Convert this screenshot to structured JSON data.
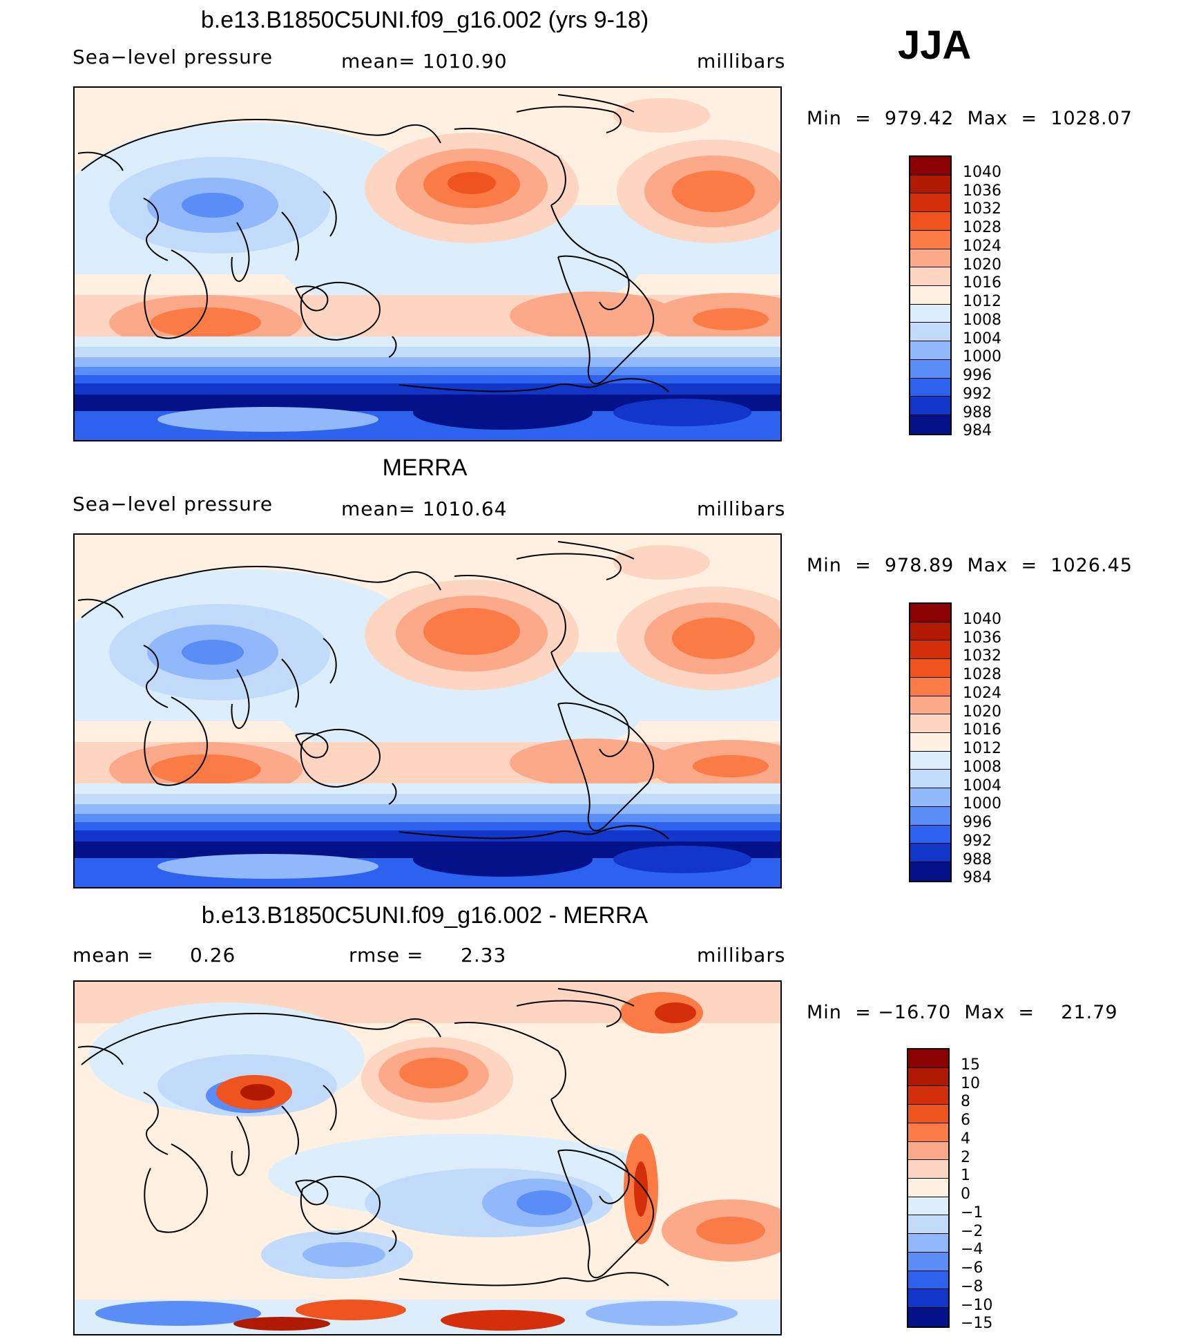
{
  "season": "JJA",
  "chart_data": [
    {
      "type": "heatmap",
      "title": "b.e13.B1850C5UNI.f09_g16.002 (yrs 9-18)",
      "variable": "Sea−level pressure",
      "stat_text": "mean=  1010.90",
      "units": "millibars",
      "min_max": "Min  =  979.42  Max  =  1028.07",
      "levels": [
        "1040",
        "1036",
        "1032",
        "1028",
        "1024",
        "1020",
        "1016",
        "1012",
        "1008",
        "1004",
        "1000",
        "996",
        "992",
        "988",
        "984"
      ],
      "level_colors": [
        "#8b0000",
        "#b01a00",
        "#d42f0b",
        "#f0541e",
        "#fb7b46",
        "#fca98a",
        "#fdd5c1",
        "#fff0e1",
        "#dceefc",
        "#c3dbfb",
        "#91b8fa",
        "#5a8df6",
        "#2c62ee",
        "#1236c8",
        "#04128a"
      ],
      "field": "model"
    },
    {
      "type": "heatmap",
      "title": "MERRA",
      "variable": "Sea−level pressure",
      "stat_text": "mean=  1010.64",
      "units": "millibars",
      "min_max": "Min  =  978.89  Max  =  1026.45",
      "levels": [
        "1040",
        "1036",
        "1032",
        "1028",
        "1024",
        "1020",
        "1016",
        "1012",
        "1008",
        "1004",
        "1000",
        "996",
        "992",
        "988",
        "984"
      ],
      "level_colors": [
        "#8b0000",
        "#b01a00",
        "#d42f0b",
        "#f0541e",
        "#fb7b46",
        "#fca98a",
        "#fdd5c1",
        "#fff0e1",
        "#dceefc",
        "#c3dbfb",
        "#91b8fa",
        "#5a8df6",
        "#2c62ee",
        "#1236c8",
        "#04128a"
      ],
      "field": "obs"
    },
    {
      "type": "heatmap",
      "title": "b.e13.B1850C5UNI.f09_g16.002 - MERRA",
      "stat_left_label": "mean  =",
      "stat_left_value": "0.26",
      "stat_mid_label": "rmse  =",
      "stat_mid_value": "2.33",
      "units": "millibars",
      "min_max": "Min  = −16.70  Max  =    21.79",
      "levels": [
        "15",
        "10",
        "8",
        "6",
        "4",
        "2",
        "1",
        "0",
        "−1",
        "−2",
        "−4",
        "−6",
        "−8",
        "−10",
        "−15"
      ],
      "level_colors": [
        "#8b0000",
        "#b01a00",
        "#d42f0b",
        "#f0541e",
        "#fb7b46",
        "#fca98a",
        "#fdd5c1",
        "#fff0e1",
        "#dceefc",
        "#c3dbfb",
        "#91b8fa",
        "#5a8df6",
        "#2c62ee",
        "#1236c8",
        "#04128a"
      ],
      "field": "diff"
    }
  ]
}
